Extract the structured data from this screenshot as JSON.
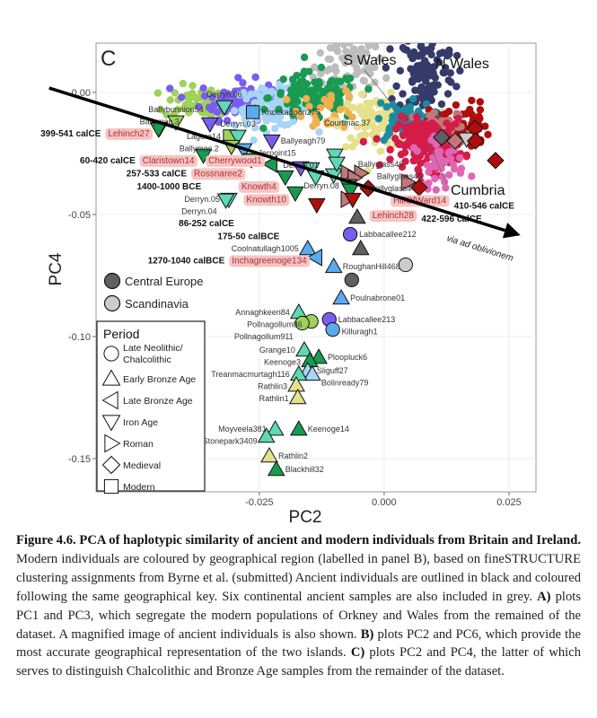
{
  "figure": {
    "panel_letter": "C",
    "caption": {
      "title": "Figure 4.6. PCA of haplotypic similarity of ancient and modern individuals from Britain and Ireland.",
      "text1": " Modern individuals are coloured by geographical region (labelled in panel B), based on fineSTRUCTURE clustering assignments from Byrne et al. (submitted) Ancient individuals are outlined in black and coloured following the same geographical key. Six continental ancient samples are also included in grey. ",
      "a_label": "A)",
      "text_a": " plots PC1 and PC3, which segregate the modern populations of Orkney and Wales from the remained of the dataset. A magnified image of ancient individuals is also shown. ",
      "b_label": "B)",
      "text_b": " plots PC2 and PC6, which provide the most accurate geographical representation of the two islands. ",
      "c_label": "C)",
      "text_c": " plots PC2 and PC4, the latter of which serves to distinguish Chalcolithic and Bronze Age samples from the remainder of the dataset."
    }
  },
  "chart_data": {
    "type": "scatter",
    "xlabel": "PC2",
    "ylabel": "PC4",
    "xlim": [
      -0.0577,
      0.0304
    ],
    "ylim": [
      -0.1636,
      0.0202
    ],
    "x_ticks": [
      {
        "v": -0.025,
        "label": "-0.025"
      },
      {
        "v": 0.0,
        "label": "0.000"
      },
      {
        "v": 0.025,
        "label": "0.025"
      }
    ],
    "y_ticks": [
      {
        "v": 0.0,
        "label": "0.00"
      },
      {
        "v": -0.05,
        "label": "-0.05"
      },
      {
        "v": -0.1,
        "label": "-0.10"
      },
      {
        "v": -0.15,
        "label": "-0.15"
      }
    ],
    "grid": true,
    "colors": {
      "aq": "#5fd9b5",
      "dg": "#1a9a50",
      "lg": "#9ed25a",
      "pu": "#7a5cf0",
      "bl": "#5aaaf0",
      "lb": "#a8d4f5",
      "kh": "#e6e08c",
      "dr": "#b00e0e",
      "ro": "#c07878",
      "gr": "#606060",
      "lgr": "#cccccc",
      "or": "#f0b050",
      "grey": "#bdbdbd",
      "teal": "#1a8ca0",
      "navy": "#353a6a",
      "crim": "#d41c48",
      "pink": "#e066b4"
    },
    "modern_clusters": [
      {
        "color": "grey",
        "center": [
          -0.007,
          0.011
        ],
        "spread": [
          0.0035,
          0.009
        ],
        "n": 90
      },
      {
        "color": "lg",
        "center": [
          -0.035,
          -0.004
        ],
        "spread": [
          0.0045,
          0.0035
        ],
        "n": 70
      },
      {
        "color": "pu",
        "center": [
          -0.029,
          -0.003
        ],
        "spread": [
          0.004,
          0.004
        ],
        "n": 90
      },
      {
        "color": "lb",
        "center": [
          -0.022,
          -0.006
        ],
        "spread": [
          0.004,
          0.004
        ],
        "n": 100
      },
      {
        "color": "dg",
        "center": [
          -0.014,
          -0.002
        ],
        "spread": [
          0.0045,
          0.005
        ],
        "n": 110
      },
      {
        "color": "or",
        "center": [
          -0.011,
          -0.007
        ],
        "spread": [
          0.003,
          0.004
        ],
        "n": 30
      },
      {
        "color": "kh",
        "center": [
          -0.001,
          -0.012
        ],
        "spread": [
          0.004,
          0.005
        ],
        "n": 110
      },
      {
        "color": "navy",
        "center": [
          0.0085,
          0.008
        ],
        "spread": [
          0.0028,
          0.009
        ],
        "n": 120
      },
      {
        "color": "teal",
        "center": [
          0.004,
          -0.012
        ],
        "spread": [
          0.0028,
          0.004
        ],
        "n": 80
      },
      {
        "color": "dr",
        "center": [
          0.015,
          -0.014
        ],
        "spread": [
          0.003,
          0.005
        ],
        "n": 60
      },
      {
        "color": "ro",
        "center": [
          0.012,
          -0.016
        ],
        "spread": [
          0.003,
          0.004
        ],
        "n": 50
      },
      {
        "color": "crim",
        "center": [
          0.009,
          -0.021
        ],
        "spread": [
          0.0035,
          0.005
        ],
        "n": 170
      },
      {
        "color": "pink",
        "center": [
          0.011,
          -0.029
        ],
        "spread": [
          0.0025,
          0.005
        ],
        "n": 40
      }
    ],
    "periods": [
      {
        "key": "neol",
        "label": "Late Neolithic/ Chalcolithic",
        "shape": "circle"
      },
      {
        "key": "eba",
        "label": "Early Bronze Age",
        "shape": "triangle-up"
      },
      {
        "key": "lba",
        "label": "Late Bronze Age",
        "shape": "triangle-left"
      },
      {
        "key": "iron",
        "label": "Iron Age",
        "shape": "triangle-down"
      },
      {
        "key": "roman",
        "label": "Roman",
        "shape": "triangle-right"
      },
      {
        "key": "med",
        "label": "Medieval",
        "shape": "diamond"
      },
      {
        "key": "modern",
        "label": "Modern",
        "shape": "square"
      }
    ],
    "legend_period_title": "Period",
    "legend_continental": [
      {
        "label": "Central Europe",
        "color": "gr"
      },
      {
        "label": "Scandinavia",
        "color": "lgr"
      }
    ],
    "region_labels": [
      {
        "label": "S Wales",
        "at": [
          0.004,
          -0.011
        ]
      },
      {
        "label": "N Wales",
        "at": [
          0.012,
          0.005
        ]
      },
      {
        "label": "Cumbria",
        "at": [
          0.009,
          -0.021
        ]
      }
    ],
    "trend_arrow": {
      "from": [
        -0.0671,
        0.0018
      ],
      "to": [
        0.0273,
        -0.0585
      ],
      "label": "via ad oblivionem"
    },
    "ancient": [
      {
        "name": "Derryn.06",
        "x": -0.032,
        "y": -0.0059,
        "period": "iron",
        "color": "aq"
      },
      {
        "name": "Knockadoon275",
        "x": -0.0263,
        "y": -0.0081,
        "period": "modern",
        "color": "bl"
      },
      {
        "name": "Ballybunnion54",
        "x": -0.0417,
        "y": -0.0121,
        "period": "iron",
        "color": "lg"
      },
      {
        "name": "Ballymac.3",
        "x": -0.045,
        "y": -0.0147,
        "period": "iron",
        "color": "dg"
      },
      {
        "name": "Lehinch27",
        "x": -0.0452,
        "y": -0.015,
        "period": "iron",
        "color": "dg",
        "highlight": true,
        "date": "399-541 calCE"
      },
      {
        "name": "",
        "x": -0.0349,
        "y": -0.0129,
        "period": "iron",
        "color": "pu"
      },
      {
        "name": "Lagore14",
        "x": -0.0309,
        "y": -0.018,
        "period": "modern",
        "color": "lg"
      },
      {
        "name": "Derryn.03",
        "x": -0.0293,
        "y": -0.018,
        "period": "iron",
        "color": "aq"
      },
      {
        "name": "Ballyeagh79",
        "x": -0.0225,
        "y": -0.0199,
        "period": "iron",
        "color": "pu"
      },
      {
        "name": "Ballymac.2",
        "x": -0.0306,
        "y": -0.0221,
        "period": "iron",
        "color": "lg"
      },
      {
        "name": "Jerpoint15",
        "x": -0.0281,
        "y": -0.0235,
        "period": "iron",
        "color": "bl"
      },
      {
        "name": "Claristown14",
        "x": -0.0362,
        "y": -0.0257,
        "period": "iron",
        "color": "dg",
        "highlight": true,
        "date": "60-420 calCE"
      },
      {
        "name": "Rossnaree2",
        "x": -0.0266,
        "y": -0.0276,
        "period": "iron",
        "color": "dg",
        "highlight": true,
        "date": "257-533 calCE"
      },
      {
        "name": "Cherrywood1",
        "x": -0.0227,
        "y": -0.0294,
        "period": "lba",
        "color": "dg",
        "highlight": true,
        "date": "1400-1000 BCE"
      },
      {
        "name": "Knowth4",
        "x": -0.0198,
        "y": -0.0346,
        "period": "iron",
        "color": "dg",
        "highlight": true,
        "date": "86-252 calCE"
      },
      {
        "name": "Knowth10",
        "x": -0.0178,
        "y": -0.0412,
        "period": "iron",
        "color": "dg",
        "highlight": true,
        "date": "175-50 calBCE"
      },
      {
        "name": "Derryn.05",
        "x": -0.0311,
        "y": -0.0438,
        "period": "iron",
        "color": "aq"
      },
      {
        "name": "Derryn.04",
        "x": -0.0317,
        "y": -0.0441,
        "period": "iron",
        "color": "aq"
      },
      {
        "name": "",
        "x": -0.0135,
        "y": -0.046,
        "period": "iron",
        "color": "dr"
      },
      {
        "name": "Derryn.01",
        "x": -0.0167,
        "y": -0.0309,
        "period": "iron",
        "color": "pu"
      },
      {
        "name": "Courtmac.37",
        "x": -0.0099,
        "y": -0.0257,
        "period": "iron",
        "color": "aq"
      },
      {
        "name": "",
        "x": -0.0146,
        "y": -0.0313,
        "period": "iron",
        "color": "aq"
      },
      {
        "name": "",
        "x": -0.0137,
        "y": -0.0346,
        "period": "iron",
        "color": "aq"
      },
      {
        "name": "",
        "x": -0.0101,
        "y": -0.0338,
        "period": "iron",
        "color": "aq"
      },
      {
        "name": "",
        "x": -0.0095,
        "y": -0.029,
        "period": "iron",
        "color": "aq"
      },
      {
        "name": "Ballyglass46",
        "x": -0.0074,
        "y": -0.0331,
        "period": "roman",
        "color": "ro"
      },
      {
        "name": "Ballyglass45",
        "x": -0.0047,
        "y": -0.0331,
        "period": "roman",
        "color": "ro"
      },
      {
        "name": "Ballyglass44",
        "x": -0.006,
        "y": -0.035,
        "period": "roman",
        "color": "ro"
      },
      {
        "name": "Derryn.08",
        "x": -0.0072,
        "y": -0.0382,
        "period": "iron",
        "color": "dg"
      },
      {
        "name": "",
        "x": -0.0068,
        "y": -0.04,
        "period": "iron",
        "color": "dg"
      },
      {
        "name": "HillOfWard14",
        "x": -0.0032,
        "y": -0.0393,
        "period": "med",
        "color": "dr",
        "highlight": true,
        "date": "410-546 calCE"
      },
      {
        "name": "Lehinch28",
        "x": -0.0074,
        "y": -0.0438,
        "period": "roman",
        "color": "ro",
        "highlight": true,
        "date": "422-596 calCE"
      },
      {
        "name": "",
        "x": -0.0063,
        "y": -0.0438,
        "period": "iron",
        "color": "dr"
      },
      {
        "name": "",
        "x": -0.0054,
        "y": -0.0511,
        "period": "eba",
        "color": "gr"
      },
      {
        "name": "Labbacallee212",
        "x": -0.0068,
        "y": -0.0581,
        "period": "neol",
        "color": "pu"
      },
      {
        "name": "",
        "x": -0.0047,
        "y": -0.064,
        "period": "eba",
        "color": "gr"
      },
      {
        "name": "Coolnatullagh1005",
        "x": -0.0153,
        "y": -0.064,
        "period": "eba",
        "color": "bl"
      },
      {
        "name": "Inchagreenoge134",
        "x": -0.0137,
        "y": -0.0676,
        "period": "lba",
        "color": "bl",
        "highlight": true,
        "date": "1270-1040 calBCE"
      },
      {
        "name": "RoughanHill468",
        "x": -0.0101,
        "y": -0.0713,
        "period": "eba",
        "color": "bl"
      },
      {
        "name": "",
        "x": 0.0043,
        "y": -0.0706,
        "period": "neol",
        "color": "lgr"
      },
      {
        "name": "",
        "x": -0.0065,
        "y": -0.0768,
        "period": "neol",
        "color": "gr"
      },
      {
        "name": "Poulnabrone01",
        "x": -0.0086,
        "y": -0.0842,
        "period": "eba",
        "color": "bl"
      },
      {
        "name": "Annaghkeen84",
        "x": -0.0171,
        "y": -0.0901,
        "period": "eba",
        "color": "aq"
      },
      {
        "name": "Pollnagollum86",
        "x": -0.0146,
        "y": -0.0938,
        "period": "neol",
        "color": "lg"
      },
      {
        "name": "Pollnagollum911",
        "x": -0.0164,
        "y": -0.0945,
        "period": "neol",
        "color": "lg"
      },
      {
        "name": "Labbacallee213",
        "x": -0.011,
        "y": -0.093,
        "period": "neol",
        "color": "pu"
      },
      {
        "name": "Killuragh1",
        "x": -0.0103,
        "y": -0.0971,
        "period": "neol",
        "color": "bl"
      },
      {
        "name": "Grange10",
        "x": -0.016,
        "y": -0.1055,
        "period": "eba",
        "color": "aq"
      },
      {
        "name": "Ploopluck6",
        "x": -0.0131,
        "y": -0.1085,
        "period": "eba",
        "color": "dg"
      },
      {
        "name": "Keenoge3",
        "x": -0.0149,
        "y": -0.1099,
        "period": "eba",
        "color": "dg"
      },
      {
        "name": "Sliguff27",
        "x": -0.0153,
        "y": -0.114,
        "period": "eba",
        "color": "lb"
      },
      {
        "name": "Bolinready79",
        "x": -0.0144,
        "y": -0.1154,
        "period": "eba",
        "color": "lb"
      },
      {
        "name": "Treanmacmurtagh116",
        "x": -0.0171,
        "y": -0.1154,
        "period": "eba",
        "color": "aq"
      },
      {
        "name": "Rathlin3",
        "x": -0.0176,
        "y": -0.1199,
        "period": "eba",
        "color": "kh"
      },
      {
        "name": "Rathlin1",
        "x": -0.0173,
        "y": -0.125,
        "period": "eba",
        "color": "kh"
      },
      {
        "name": "Moyveela381",
        "x": -0.0218,
        "y": -0.1379,
        "period": "eba",
        "color": "aq"
      },
      {
        "name": "Stonepark3409",
        "x": -0.0236,
        "y": -0.1408,
        "period": "eba",
        "color": "aq"
      },
      {
        "name": "Keenoge14",
        "x": -0.0171,
        "y": -0.1379,
        "period": "eba",
        "color": "dg"
      },
      {
        "name": "Rathlin2",
        "x": -0.023,
        "y": -0.1489,
        "period": "eba",
        "color": "kh"
      },
      {
        "name": "Blackhill32",
        "x": -0.0216,
        "y": -0.1544,
        "period": "eba",
        "color": "dg"
      },
      {
        "name": "",
        "x": 0.0115,
        "y": -0.0184,
        "period": "med",
        "color": "gr"
      },
      {
        "name": "",
        "x": 0.0142,
        "y": -0.0199,
        "period": "med",
        "color": "ro"
      },
      {
        "name": "",
        "x": 0.0165,
        "y": -0.0191,
        "period": "iron",
        "color": "lgr"
      },
      {
        "name": "",
        "x": 0.0182,
        "y": -0.0147,
        "period": "med",
        "color": "dr"
      },
      {
        "name": "",
        "x": 0.0183,
        "y": -0.0199,
        "period": "med",
        "color": "dr"
      },
      {
        "name": "",
        "x": 0.0223,
        "y": -0.0279,
        "period": "med",
        "color": "dr"
      },
      {
        "name": "",
        "x": 0.007,
        "y": -0.039,
        "period": "med",
        "color": "dr"
      },
      {
        "name": "",
        "x": 0.0047,
        "y": -0.0368,
        "period": "roman",
        "color": "ro"
      }
    ]
  }
}
